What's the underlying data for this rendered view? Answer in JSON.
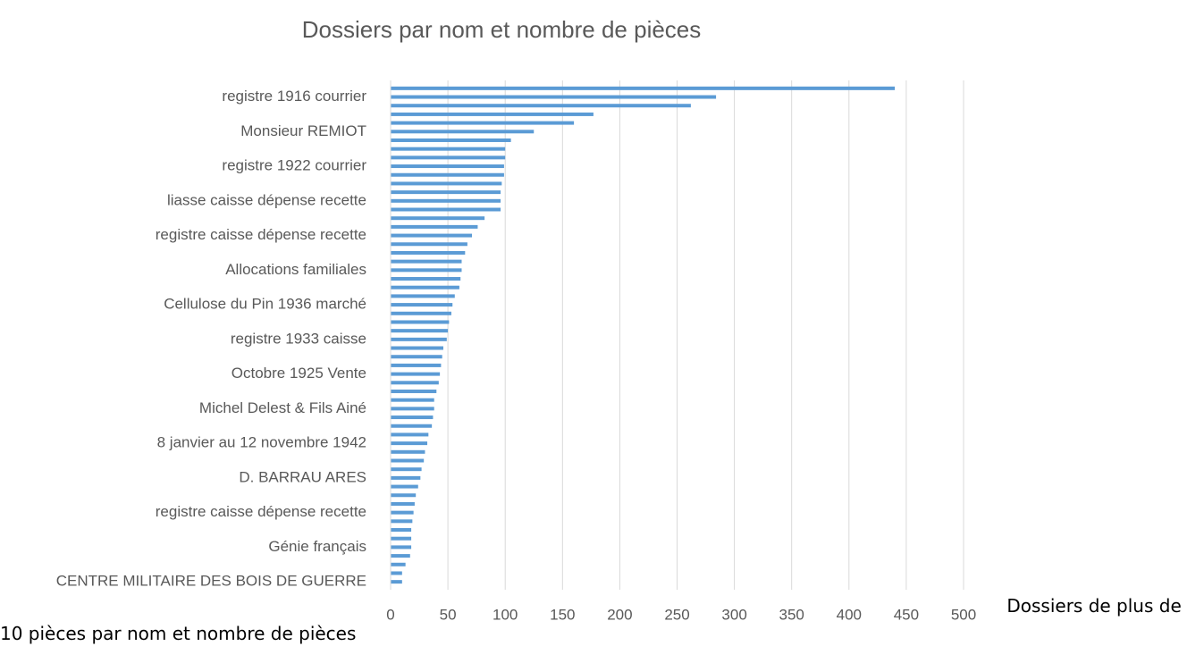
{
  "chart_data": {
    "type": "bar",
    "orientation": "horizontal",
    "title": "Dossiers par nom et nombre de pièces",
    "categories": [
      null,
      "registre 1916 courrier",
      null,
      null,
      null,
      "Monsieur REMIOT",
      null,
      null,
      null,
      "registre 1922 courrier",
      null,
      null,
      null,
      "liasse caisse dépense recette",
      null,
      null,
      null,
      "registre caisse dépense recette",
      null,
      null,
      null,
      "Allocations familiales",
      null,
      null,
      null,
      "Cellulose du Pin 1936 marché",
      null,
      null,
      null,
      "registre 1933 caisse",
      null,
      null,
      null,
      "Octobre 1925 Vente",
      null,
      null,
      null,
      "Michel Delest & Fils Ainé",
      null,
      null,
      null,
      "8 janvier au 12 novembre 1942",
      null,
      null,
      null,
      "D. BARRAU ARES",
      null,
      null,
      null,
      "registre caisse dépense recette",
      null,
      null,
      null,
      "Génie français",
      null,
      null,
      null,
      "CENTRE MILITAIRE DES BOIS DE GUERRE"
    ],
    "values": [
      440,
      284,
      262,
      177,
      160,
      125,
      105,
      100,
      100,
      99,
      99,
      97,
      96,
      96,
      96,
      82,
      76,
      71,
      67,
      65,
      62,
      62,
      61,
      60,
      56,
      54,
      53,
      51,
      50,
      49,
      46,
      45,
      44,
      43,
      42,
      40,
      38,
      38,
      37,
      36,
      33,
      32,
      30,
      29,
      27,
      26,
      24,
      22,
      21,
      20,
      19,
      18,
      18,
      18,
      17,
      13,
      10,
      10
    ],
    "color": "#5b9bd5",
    "xlim": [
      0,
      500
    ],
    "xticks": [
      0,
      50,
      100,
      150,
      200,
      250,
      300,
      350,
      400,
      450,
      500
    ],
    "grid": true
  },
  "caption": "Dossiers de plus de 10 pièces par nom et nombre de pièces"
}
